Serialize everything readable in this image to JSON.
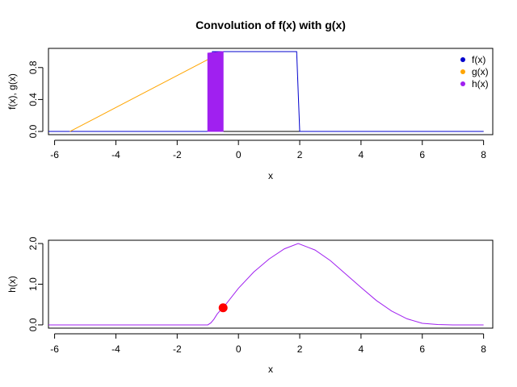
{
  "chart_data": [
    {
      "type": "line",
      "title": "Convolution of f(x) with g(x)",
      "xlabel": "x",
      "ylabel": "f(x), g(x)",
      "xlim": [
        -6.2,
        8.3
      ],
      "ylim": [
        -0.04,
        1.04
      ],
      "xticks": [
        -6,
        -4,
        -2,
        0,
        2,
        4,
        6,
        8
      ],
      "yticks": [
        0.0,
        0.4,
        0.8
      ],
      "ytick_labels": [
        "0.0",
        "0.4",
        "0.8"
      ],
      "legend_position": "top-right",
      "series": [
        {
          "name": "f(x)",
          "color": "#0000CD",
          "x": [
            -6.2,
            -0.85,
            -0.85,
            1.9,
            2.0,
            8.0
          ],
          "y": [
            0,
            0,
            1,
            1,
            0,
            0
          ]
        },
        {
          "name": "g(x)",
          "color": "#FFA500",
          "x": [
            -5.5,
            -0.5
          ],
          "y": [
            0,
            1
          ]
        },
        {
          "name": "h(x)",
          "color": "#A020F0",
          "fill_x": [
            -1.0,
            -0.5
          ],
          "fill_top": [
            0.98,
            1.0
          ]
        }
      ],
      "baseline": {
        "x": [
          -6.2,
          8.0
        ],
        "y": [
          0,
          0
        ],
        "color": "#000000"
      }
    },
    {
      "type": "line",
      "title": "",
      "xlabel": "x",
      "ylabel": "h(x)",
      "xlim": [
        -6.2,
        8.3
      ],
      "ylim": [
        -0.08,
        2.08
      ],
      "xticks": [
        -6,
        -4,
        -2,
        0,
        2,
        4,
        6,
        8
      ],
      "yticks": [
        0.0,
        1.0,
        2.0
      ],
      "ytick_labels": [
        "0.0",
        "1.0",
        "2.0"
      ],
      "series": [
        {
          "name": "h(x)",
          "color": "#A020F0",
          "x": [
            -6.2,
            -1.0,
            -0.9,
            -0.8,
            -0.7,
            -0.6,
            -0.5,
            0.0,
            0.5,
            1.0,
            1.5,
            1.95,
            2.5,
            3.0,
            3.5,
            4.0,
            4.5,
            5.0,
            5.5,
            6.0,
            6.5,
            7.0,
            8.0
          ],
          "y": [
            0,
            0,
            0.05,
            0.14,
            0.26,
            0.35,
            0.42,
            0.9,
            1.3,
            1.62,
            1.87,
            2.0,
            1.84,
            1.58,
            1.25,
            0.92,
            0.6,
            0.34,
            0.15,
            0.04,
            0.01,
            0.0,
            0.0
          ]
        }
      ],
      "point": {
        "x": -0.5,
        "y": 0.42,
        "color": "#FF0000"
      }
    }
  ]
}
